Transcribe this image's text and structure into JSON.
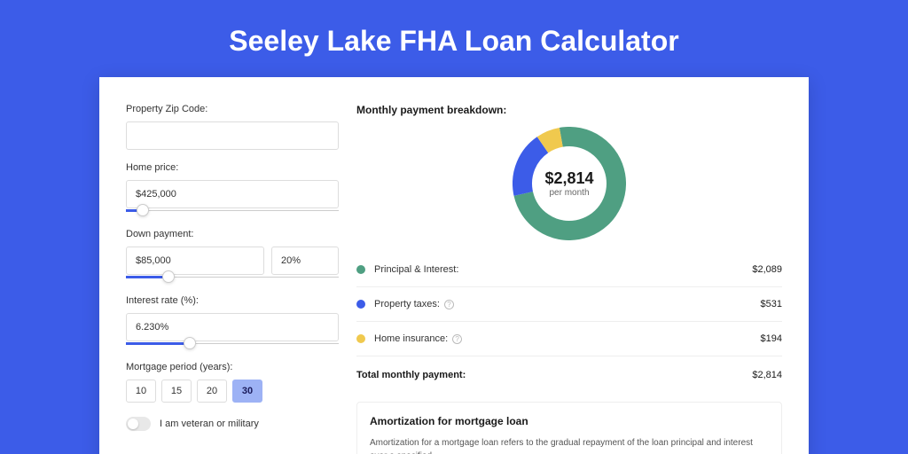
{
  "page": {
    "title": "Seeley Lake FHA Loan Calculator",
    "background_color": "#3c5ce8",
    "card_background": "#ffffff"
  },
  "form": {
    "zip": {
      "label": "Property Zip Code:",
      "value": ""
    },
    "home_price": {
      "label": "Home price:",
      "value": "$425,000",
      "slider_pct": 8
    },
    "down_payment": {
      "label": "Down payment:",
      "value": "$85,000",
      "pct": "20%",
      "slider_pct": 20
    },
    "interest_rate": {
      "label": "Interest rate (%):",
      "value": "6.230%",
      "slider_pct": 30
    },
    "mortgage_period": {
      "label": "Mortgage period (years):",
      "options": [
        "10",
        "15",
        "20",
        "30"
      ],
      "selected": "30"
    },
    "veteran": {
      "label": "I am veteran or military",
      "checked": false
    }
  },
  "breakdown": {
    "title": "Monthly payment breakdown:",
    "center_amount": "$2,814",
    "center_sub": "per month",
    "donut": {
      "size": 128,
      "thickness": 22,
      "slices": [
        {
          "color": "#4f9f82",
          "pct": 74.2
        },
        {
          "color": "#3c5ce8",
          "pct": 18.9
        },
        {
          "color": "#f0c94e",
          "pct": 6.9
        }
      ]
    },
    "items": [
      {
        "dot": "#4f9f82",
        "label": "Principal & Interest:",
        "info": false,
        "value": "$2,089"
      },
      {
        "dot": "#3c5ce8",
        "label": "Property taxes:",
        "info": true,
        "value": "$531"
      },
      {
        "dot": "#f0c94e",
        "label": "Home insurance:",
        "info": true,
        "value": "$194"
      }
    ],
    "total": {
      "label": "Total monthly payment:",
      "value": "$2,814"
    }
  },
  "amortization": {
    "title": "Amortization for mortgage loan",
    "text": "Amortization for a mortgage loan refers to the gradual repayment of the loan principal and interest over a specified"
  }
}
